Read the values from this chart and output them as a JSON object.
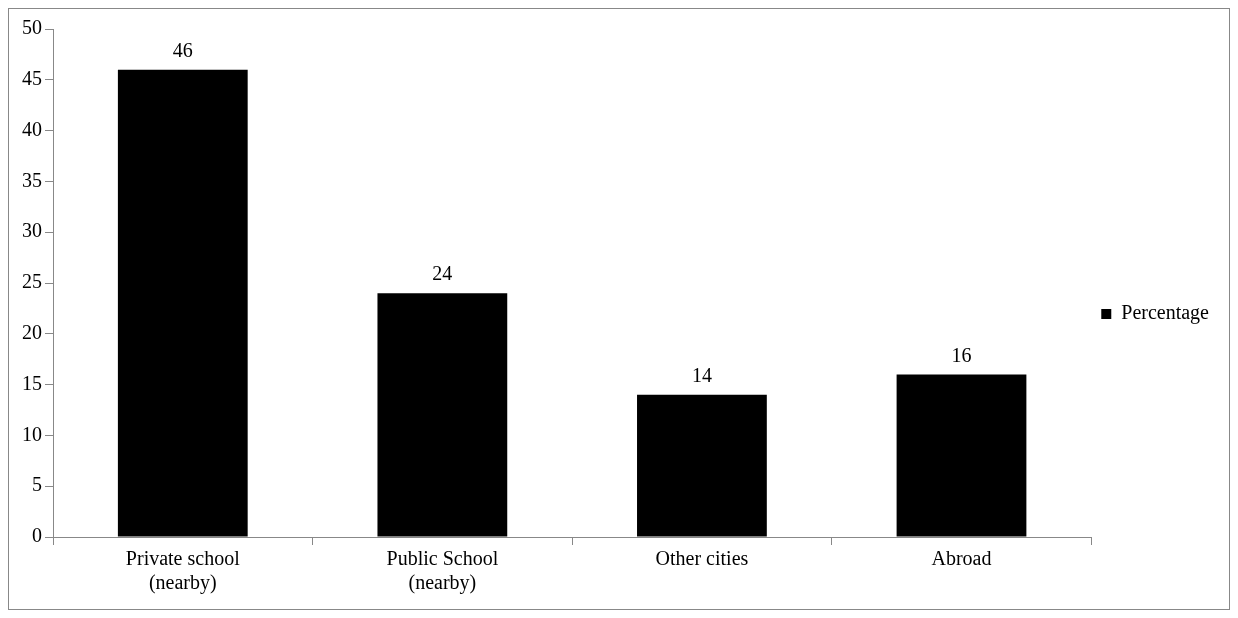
{
  "chart_data": {
    "type": "bar",
    "categories": [
      "Private school (nearby)",
      "Public School (nearby)",
      "Other cities",
      "Abroad"
    ],
    "series": [
      {
        "name": "Percentage",
        "color": "#000000",
        "values": [
          46,
          24,
          14,
          16
        ]
      }
    ],
    "ylim": [
      0,
      50
    ],
    "yticks": [
      0,
      5,
      10,
      15,
      20,
      25,
      30,
      35,
      40,
      45,
      50
    ],
    "data_labels": true,
    "legend": "right",
    "grid": false
  }
}
